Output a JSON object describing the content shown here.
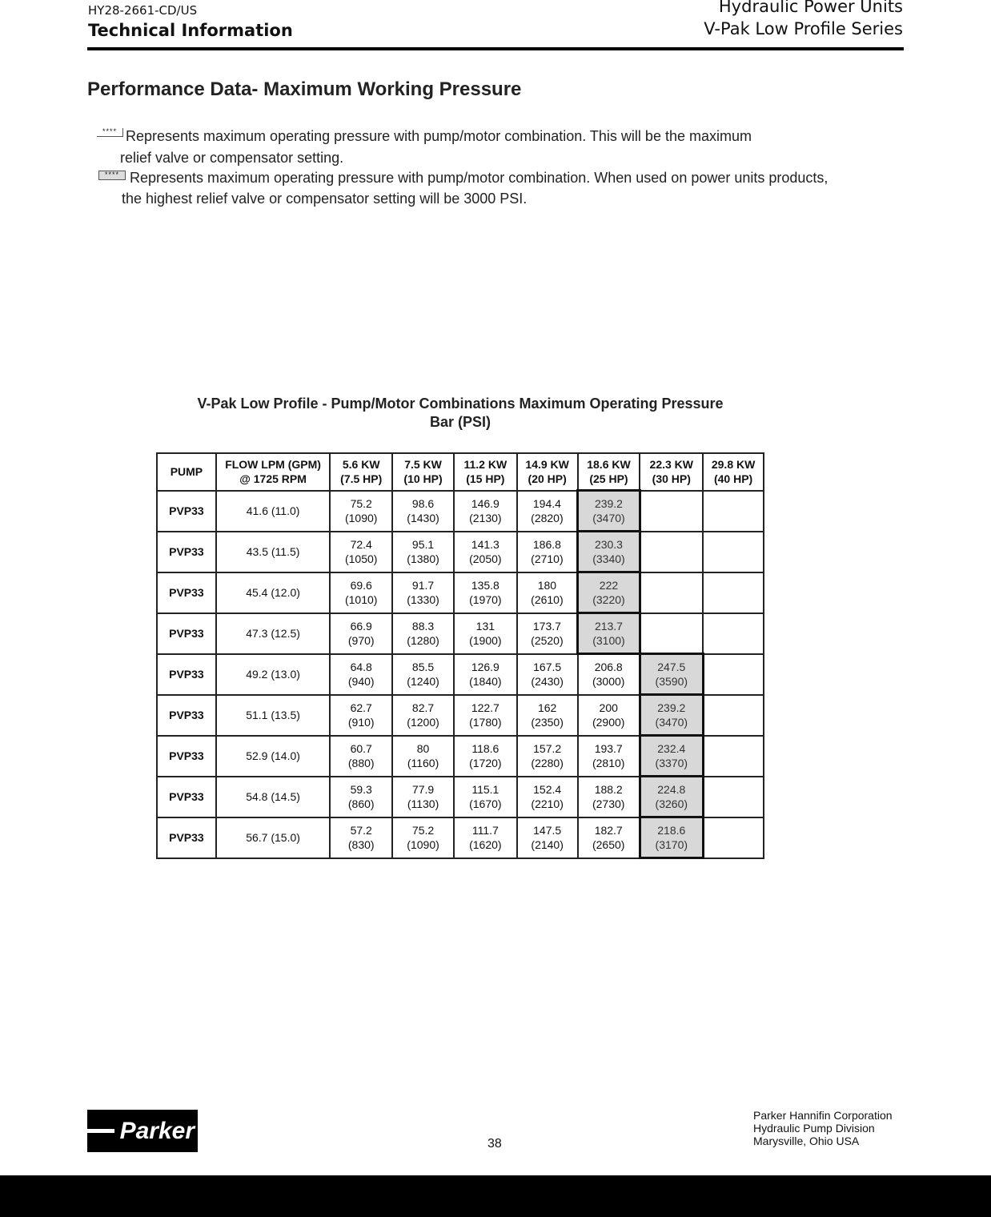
{
  "header": {
    "doc_id": "HY28-2661-CD/US",
    "section": "Technical Information",
    "product_line": "Hydraulic Power Units",
    "series": "V-Pak Low Profile Series"
  },
  "title": "Performance Data- Maximum Working Pressure",
  "notes": [
    {
      "key": "****",
      "line1": "Represents maximum operating pressure with pump/motor combination.  This will be the maximum",
      "line2": "relief valve or compensator setting."
    },
    {
      "key": "****",
      "line1": "Represents maximum operating pressure with pump/motor combination. When used on power units products,",
      "line2": "the highest relief valve or compensator setting will be 3000 PSI."
    }
  ],
  "table": {
    "title1": "V-Pak Low Profile - Pump/Motor Combinations Maximum Operating Pressure",
    "title2": "Bar (PSI)",
    "headers": [
      [
        "PUMP",
        ""
      ],
      [
        "FLOW LPM (GPM)",
        "@ 1725 RPM"
      ],
      [
        "5.6 KW",
        "(7.5 HP)"
      ],
      [
        "7.5 KW",
        "(10 HP)"
      ],
      [
        "11.2 KW",
        "(15 HP)"
      ],
      [
        "14.9 KW",
        "(20 HP)"
      ],
      [
        "18.6 KW",
        "(25 HP)"
      ],
      [
        "22.3 KW",
        "(30 HP)"
      ],
      [
        "29.8 KW",
        "(40 HP)"
      ]
    ],
    "rows": [
      {
        "pump": "PVP33",
        "flow": "41.6 (11.0)",
        "cells": [
          [
            "75.2",
            "(1090)"
          ],
          [
            "98.6",
            "(1430)"
          ],
          [
            "146.9",
            "(2130)"
          ],
          [
            "194.4",
            "(2820)"
          ],
          [
            "239.2",
            "(3470)",
            "shade"
          ],
          null,
          null
        ]
      },
      {
        "pump": "PVP33",
        "flow": "43.5 (11.5)",
        "cells": [
          [
            "72.4",
            "(1050)"
          ],
          [
            "95.1",
            "(1380)"
          ],
          [
            "141.3",
            "(2050)"
          ],
          [
            "186.8",
            "(2710)"
          ],
          [
            "230.3",
            "(3340)",
            "shade"
          ],
          null,
          null
        ]
      },
      {
        "pump": "PVP33",
        "flow": "45.4 (12.0)",
        "cells": [
          [
            "69.6",
            "(1010)"
          ],
          [
            "91.7",
            "(1330)"
          ],
          [
            "135.8",
            "(1970)"
          ],
          [
            "180",
            "(2610)"
          ],
          [
            "222",
            "(3220)",
            "shade"
          ],
          null,
          null
        ]
      },
      {
        "pump": "PVP33",
        "flow": "47.3 (12.5)",
        "cells": [
          [
            "66.9",
            "(970)"
          ],
          [
            "88.3",
            "(1280)"
          ],
          [
            "131",
            "(1900)"
          ],
          [
            "173.7",
            "(2520)"
          ],
          [
            "213.7",
            "(3100)",
            "shade"
          ],
          null,
          null
        ]
      },
      {
        "pump": "PVP33",
        "flow": "49.2 (13.0)",
        "cells": [
          [
            "64.8",
            "(940)"
          ],
          [
            "85.5",
            "(1240)"
          ],
          [
            "126.9",
            "(1840)"
          ],
          [
            "167.5",
            "(2430)"
          ],
          [
            "206.8",
            "(3000)"
          ],
          [
            "247.5",
            "(3590)",
            "shade"
          ],
          null
        ]
      },
      {
        "pump": "PVP33",
        "flow": "51.1 (13.5)",
        "cells": [
          [
            "62.7",
            "(910)"
          ],
          [
            "82.7",
            "(1200)"
          ],
          [
            "122.7",
            "(1780)"
          ],
          [
            "162",
            "(2350)"
          ],
          [
            "200",
            "(2900)"
          ],
          [
            "239.2",
            "(3470)",
            "shade"
          ],
          null
        ]
      },
      {
        "pump": "PVP33",
        "flow": "52.9 (14.0)",
        "cells": [
          [
            "60.7",
            "(880)"
          ],
          [
            "80",
            "(1160)"
          ],
          [
            "118.6",
            "(1720)"
          ],
          [
            "157.2",
            "(2280)"
          ],
          [
            "193.7",
            "(2810)"
          ],
          [
            "232.4",
            "(3370)",
            "shade"
          ],
          null
        ]
      },
      {
        "pump": "PVP33",
        "flow": "54.8 (14.5)",
        "cells": [
          [
            "59.3",
            "(860)"
          ],
          [
            "77.9",
            "(1130)"
          ],
          [
            "115.1",
            "(1670)"
          ],
          [
            "152.4",
            "(2210)"
          ],
          [
            "188.2",
            "(2730)"
          ],
          [
            "224.8",
            "(3260)",
            "shade"
          ],
          null
        ]
      },
      {
        "pump": "PVP33",
        "flow": "56.7 (15.0)",
        "cells": [
          [
            "57.2",
            "(830)"
          ],
          [
            "75.2",
            "(1090)"
          ],
          [
            "111.7",
            "(1620)"
          ],
          [
            "147.5",
            "(2140)"
          ],
          [
            "182.7",
            "(2650)"
          ],
          [
            "218.6",
            "(3170)",
            "shade"
          ],
          null
        ]
      }
    ]
  },
  "footer": {
    "logo": "Parker",
    "page": "38",
    "address": [
      "Parker Hannifin Corporation",
      "Hydraulic Pump Division",
      "Marysville, Ohio USA"
    ]
  }
}
